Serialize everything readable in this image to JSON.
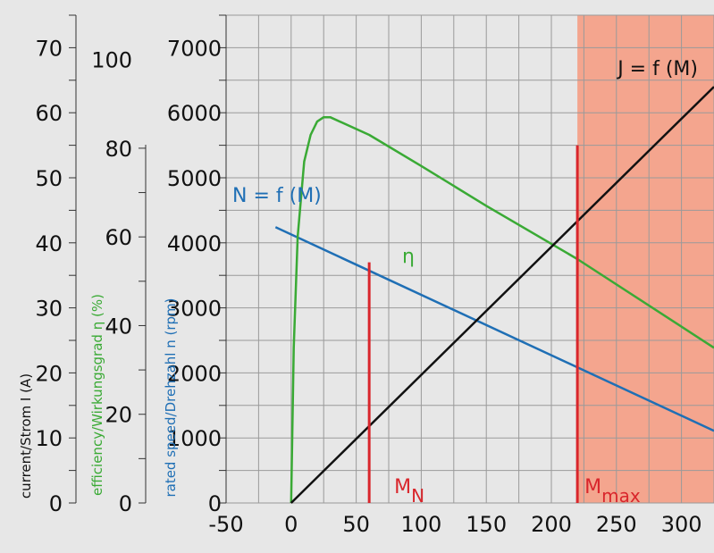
{
  "chart_data": {
    "type": "line",
    "title": "",
    "x_axis": {
      "label": "",
      "range": [
        -50,
        325
      ],
      "ticks": [
        -50,
        0,
        50,
        100,
        150,
        200,
        250,
        300
      ],
      "tick_labels": [
        "-50",
        "0",
        "50",
        "100",
        "150",
        "200",
        "250",
        "300"
      ]
    },
    "y_axes": [
      {
        "key": "current",
        "label": "current/Strom I (A)",
        "color": "#111111",
        "range": [
          0,
          75
        ],
        "ticks": [
          0,
          10,
          20,
          30,
          40,
          50,
          60,
          70
        ],
        "tick_labels": [
          "0",
          "10",
          "20",
          "30",
          "40",
          "50",
          "60",
          "70"
        ]
      },
      {
        "key": "efficiency",
        "label": "efficiency/Wirkungsgrad η (%)",
        "color": "#3aaa35",
        "range": [
          0,
          110
        ],
        "ticks": [
          0,
          20,
          40,
          60,
          80,
          100
        ],
        "tick_labels": [
          "0",
          "20",
          "40",
          "60",
          "80",
          "100"
        ]
      },
      {
        "key": "speed",
        "label": "rated speed/Drehzahl n (rpm)",
        "color": "#1f6fb5",
        "range": [
          0,
          7500
        ],
        "ticks": [
          0,
          1000,
          2000,
          3000,
          4000,
          5000,
          6000,
          7000
        ],
        "tick_labels": [
          "0",
          "1000",
          "2000",
          "3000",
          "4000",
          "5000",
          "6000",
          "7000"
        ]
      }
    ],
    "grid": true,
    "series": [
      {
        "name": "N = f (M)",
        "axis": "speed",
        "color": "#1f6fb5",
        "x": [
          -12,
          325
        ],
        "y": [
          4240,
          1110
        ]
      },
      {
        "name": "η",
        "axis": "efficiency",
        "color": "#3aaa35",
        "x": [
          0,
          2,
          5,
          10,
          15,
          20,
          25,
          30,
          60,
          100,
          150,
          220,
          325
        ],
        "y": [
          0,
          35,
          60,
          77,
          83,
          86,
          87,
          87,
          83,
          76,
          67,
          55,
          35
        ]
      },
      {
        "name": "J = f (M)",
        "axis": "current",
        "color": "#111111",
        "x": [
          0,
          325
        ],
        "y": [
          0,
          64
        ]
      }
    ],
    "markers": [
      {
        "label": "M",
        "subscript": "N",
        "x": 60,
        "color": "#d9262c",
        "ymax_speed": 3700
      },
      {
        "label": "M",
        "subscript": "max",
        "x": 220,
        "color": "#d9262c",
        "ymax_speed": 5500
      }
    ],
    "shaded_region": {
      "x_from": 220,
      "x_to": 325,
      "color": "#f4a58e"
    },
    "curve_labels": [
      {
        "text": "N = f (M)",
        "color": "#1f6fb5"
      },
      {
        "text": "η",
        "color": "#3aaa35"
      },
      {
        "text": "J = f (M)",
        "color": "#111111"
      }
    ],
    "background_color": "#e7e7e7",
    "grid_color": "#9a9a9a"
  }
}
